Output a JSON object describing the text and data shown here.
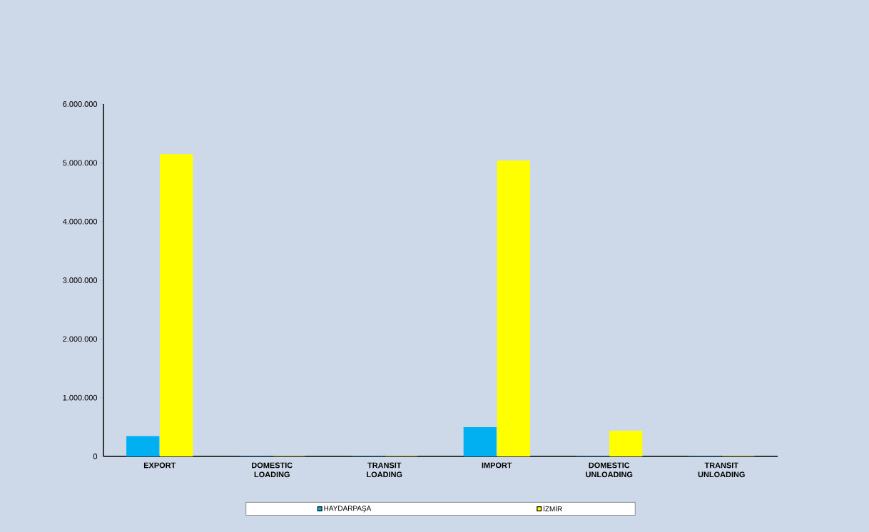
{
  "chart_data": {
    "type": "bar",
    "categories": [
      "EXPORT",
      "DOMESTIC LOADING",
      "TRANSIT LOADING",
      "IMPORT",
      "DOMESTIC UNLOADING",
      "TRANSIT UNLOADING"
    ],
    "series": [
      {
        "name": "HAYDARPAŞA",
        "color": "#00b0f0",
        "values": [
          340000,
          0,
          0,
          490000,
          0,
          0
        ]
      },
      {
        "name": "İZMİR",
        "color": "#ffff00",
        "values": [
          5140000,
          0,
          0,
          5030000,
          430000,
          0
        ]
      }
    ],
    "ylim": [
      0,
      6000000
    ],
    "yticks": [
      {
        "value": 0,
        "label": "0"
      },
      {
        "value": 1000000,
        "label": "1.000.000"
      },
      {
        "value": 2000000,
        "label": "2.000.000"
      },
      {
        "value": 3000000,
        "label": "3.000.000"
      },
      {
        "value": 4000000,
        "label": "4.000.000"
      },
      {
        "value": 5000000,
        "label": "5.000.000"
      },
      {
        "value": 6000000,
        "label": "6.000.000"
      }
    ],
    "grid": false,
    "legend": "bottom"
  }
}
